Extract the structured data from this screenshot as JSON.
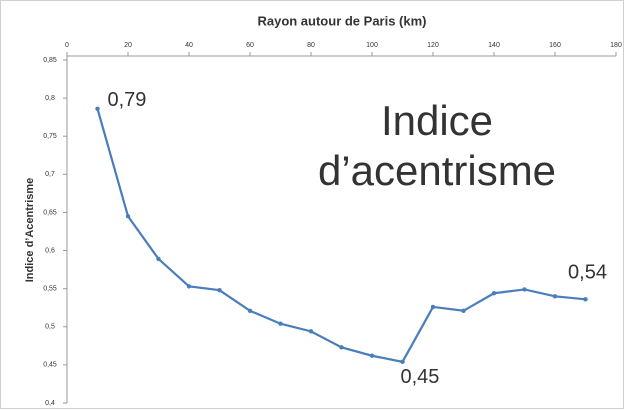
{
  "chart_data": {
    "type": "line",
    "title": "Rayon autour de Paris (km)",
    "y_label": "Indice d’Acentrisme",
    "overlay_title": [
      "Indice",
      "d’acentrisme"
    ],
    "x": [
      10,
      20,
      30,
      40,
      50,
      60,
      70,
      80,
      90,
      100,
      110,
      120,
      130,
      140,
      150,
      160,
      170
    ],
    "series": [
      {
        "color": "#4a7ebb",
        "values": [
          0.786,
          0.645,
          0.589,
          0.553,
          0.548,
          0.521,
          0.504,
          0.494,
          0.473,
          0.462,
          0.454,
          0.526,
          0.521,
          0.544,
          0.549,
          0.54,
          0.536
        ],
        "value_labels": [
          "0,79",
          null,
          null,
          null,
          null,
          null,
          null,
          null,
          null,
          null,
          "0,45",
          null,
          null,
          null,
          null,
          null,
          "0,54"
        ]
      }
    ],
    "xlim": [
      0,
      180
    ],
    "xticks": [
      0,
      20,
      40,
      60,
      80,
      100,
      120,
      140,
      160,
      180
    ],
    "ylim": [
      0.4,
      0.85
    ],
    "yticks": [
      {
        "value": 0.4,
        "label": "0,4"
      },
      {
        "value": 0.45,
        "label": "0,45"
      },
      {
        "value": 0.5,
        "label": "0,5"
      },
      {
        "value": 0.55,
        "label": "0,55"
      },
      {
        "value": 0.6,
        "label": "0,6"
      },
      {
        "value": 0.65,
        "label": "0,65"
      },
      {
        "value": 0.7,
        "label": "0,7"
      },
      {
        "value": 0.75,
        "label": "0,75"
      },
      {
        "value": 0.8,
        "label": "0,8"
      },
      {
        "value": 0.85,
        "label": "0,85"
      }
    ],
    "grid": false
  }
}
